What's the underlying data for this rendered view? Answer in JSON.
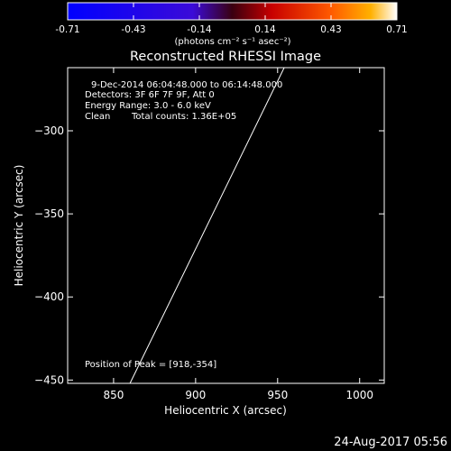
{
  "colorbar": {
    "ticks": [
      "-0.71",
      "-0.43",
      "-0.14",
      "0.14",
      "0.43",
      "0.71"
    ],
    "unit_label": "(photons cm⁻² s⁻¹ asec⁻²)",
    "min": -0.71,
    "max": 0.71
  },
  "chart_data": {
    "type": "heatmap",
    "title": "Reconstructed RHESSI Image",
    "xlabel": "Heliocentric X (arcsec)",
    "ylabel": "Heliocentric Y (arcsec)",
    "xlim": [
      822,
      1015
    ],
    "ylim": [
      -452,
      -262
    ],
    "x_ticks": [
      850,
      900,
      950,
      1000
    ],
    "y_ticks": [
      -300,
      -350,
      -400,
      -450
    ],
    "x_tick_labels": [
      "850",
      "900",
      "950",
      "1000"
    ],
    "y_tick_labels": [
      "−300",
      "−350",
      "−400",
      "−450"
    ],
    "annotations": [
      "9-Dec-2014 06:04:48.000 to 06:14:48.000",
      "Detectors: 3F 6F 7F 9F, Att 0",
      "Energy Range: 3.0 - 6.0 keV",
      "Clean",
      "Total counts: 1.36E+05"
    ],
    "peak_label": "Position of Peak = [918,-354]",
    "peak": {
      "x": 918,
      "y": -354
    },
    "limb_line": [
      [
        860,
        -452
      ],
      [
        954,
        -262
      ]
    ]
  },
  "footer": {
    "timestamp": "24-Aug-2017 05:56"
  }
}
